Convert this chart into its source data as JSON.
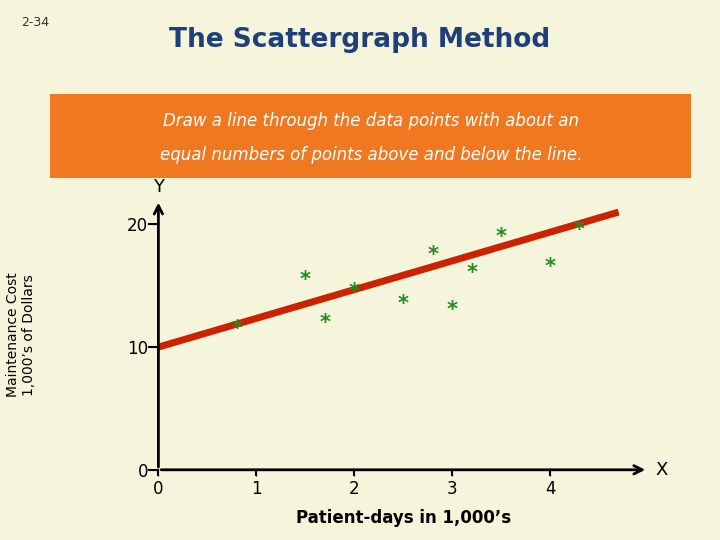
{
  "title": "The Scattergraph Method",
  "title_color": "#1F3F7A",
  "background_color": "#F5F5DC",
  "slide_label": "2-34",
  "banner_text_line1": "Draw a line through the data points with about an",
  "banner_text_line2": "equal numbers of points above and below the line.",
  "banner_color": "#F07820",
  "banner_text_color": "#FFFFFF",
  "scatter_x": [
    0.8,
    1.5,
    1.7,
    2.0,
    2.5,
    2.8,
    3.0,
    3.2,
    3.5,
    4.0,
    4.3
  ],
  "scatter_y": [
    11.5,
    15.5,
    12.0,
    14.5,
    13.5,
    17.5,
    13.0,
    16.0,
    19.0,
    16.5,
    19.5
  ],
  "scatter_color": "#228B22",
  "line_x": [
    0,
    4.7
  ],
  "line_y": [
    10.0,
    21.0
  ],
  "line_color": "#CC2200",
  "xlabel": "Patient-days in 1,000’s",
  "ylabel_line1": "Maintenance Cost",
  "ylabel_line2": "1,000’s of Dollars",
  "xlim": [
    0,
    5.0
  ],
  "ylim": [
    0,
    22
  ],
  "xticks": [
    0,
    1,
    2,
    3,
    4
  ],
  "yticks": [
    0,
    10,
    20
  ],
  "axis_label_x": "X",
  "axis_label_y": "Y",
  "xlabel_fontsize": 12,
  "ylabel_fontsize": 10,
  "title_fontsize": 19,
  "banner_fontsize": 12
}
